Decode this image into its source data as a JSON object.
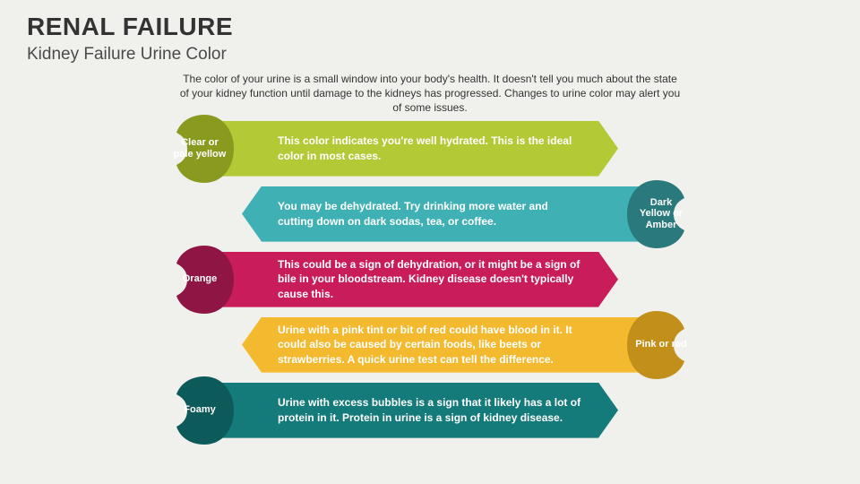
{
  "title": "RENAL FAILURE",
  "subtitle": "Kidney Failure Urine Color",
  "intro": "The color of your urine is a small window into your body's health. It doesn't tell you much about the state of your kidney function until damage to the kidneys has progressed. Changes to urine color may alert you of some issues.",
  "background_color": "#f0f0ed",
  "title_color": "#333333",
  "rows": [
    {
      "side": "left",
      "label": "Clear or pale yellow",
      "description": "This color indicates you're well hydrated. This is the ideal color in most cases.",
      "bar_color": "#b3c935",
      "bean_color": "#8a9a1f"
    },
    {
      "side": "right",
      "label": "Dark Yellow or Amber",
      "description": "You may be dehydrated. Try drinking more water and cutting down on dark sodas, tea, or coffee.",
      "bar_color": "#3fb1b5",
      "bean_color": "#2a7a7d"
    },
    {
      "side": "left",
      "label": "Orange",
      "description": "This could be a sign of dehydration, or it might be a sign of bile in your bloodstream. Kidney disease doesn't typically cause this.",
      "bar_color": "#c91d5b",
      "bean_color": "#8f1544"
    },
    {
      "side": "right",
      "label": "Pink or red",
      "description": "Urine with a pink tint or bit of red could have blood in it. It could also be caused by certain foods, like beets or strawberries. A quick urine test can tell the difference.",
      "bar_color": "#f3b92f",
      "bean_color": "#c18f1a"
    },
    {
      "side": "left",
      "label": "Foamy",
      "description": "Urine with excess bubbles is a sign that it likely has a lot of protein in it. Protein in urine is a sign of kidney disease.",
      "bar_color": "#157a7a",
      "bean_color": "#0d5a5a"
    }
  ]
}
